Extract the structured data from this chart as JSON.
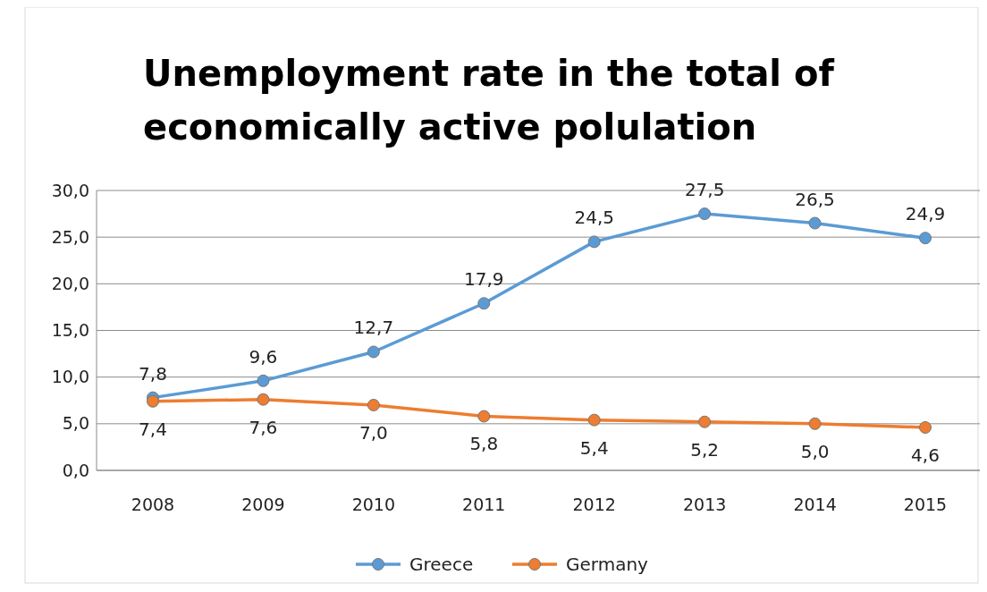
{
  "chart_data": {
    "type": "line",
    "title": "Unemployment rate in the total of economically active polulation",
    "categories": [
      "2008",
      "2009",
      "2010",
      "2011",
      "2012",
      "2013",
      "2014",
      "2015"
    ],
    "series": [
      {
        "name": "Greece",
        "color": "#5b9bd5",
        "values": [
          7.8,
          9.6,
          12.7,
          17.9,
          24.5,
          27.5,
          26.5,
          24.9
        ],
        "value_labels": [
          "7,8",
          "9,6",
          "12,7",
          "17,9",
          "24,5",
          "27,5",
          "26,5",
          "24,9"
        ]
      },
      {
        "name": "Germany",
        "color": "#ed7d31",
        "values": [
          7.4,
          7.6,
          7.0,
          5.8,
          5.4,
          5.2,
          5.0,
          4.6
        ],
        "value_labels": [
          "7,4",
          "7,6",
          "7,0",
          "5,8",
          "5,4",
          "5,2",
          "5,0",
          "4,6"
        ]
      }
    ],
    "ylim": [
      0,
      30
    ],
    "yticks": [
      {
        "value": 0,
        "label": "0,0"
      },
      {
        "value": 5,
        "label": "5,0"
      },
      {
        "value": 10,
        "label": "10,0"
      },
      {
        "value": 15,
        "label": "15,0"
      },
      {
        "value": 20,
        "label": "20,0"
      },
      {
        "value": 25,
        "label": "25,0"
      },
      {
        "value": 30,
        "label": "30,0"
      }
    ],
    "grid": "y",
    "legend": "bottom",
    "marker": "circle",
    "line_style": "solid"
  }
}
